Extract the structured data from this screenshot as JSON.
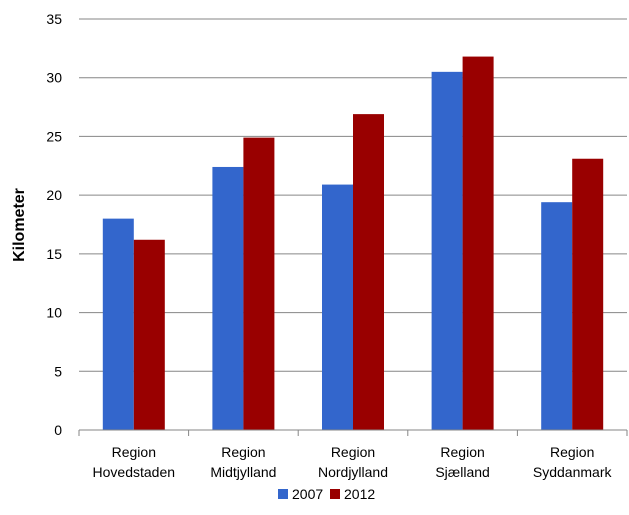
{
  "chart_data": {
    "type": "bar",
    "title": "",
    "xlabel": "",
    "ylabel": "Kilometer",
    "ylim": [
      0,
      35
    ],
    "yticks": [
      0,
      5,
      10,
      15,
      20,
      25,
      30,
      35
    ],
    "grid": true,
    "legend_position": "bottom",
    "categories": [
      [
        "Region",
        "Hovedstaden"
      ],
      [
        "Region",
        "Midtjylland"
      ],
      [
        "Region",
        "Nordjylland"
      ],
      [
        "Region",
        "Sjælland"
      ],
      [
        "Region",
        "Syddanmark"
      ]
    ],
    "series": [
      {
        "name": "2007",
        "color": "#3366CC",
        "values": [
          18.0,
          22.4,
          20.9,
          30.5,
          19.4
        ]
      },
      {
        "name": "2012",
        "color": "#990000",
        "values": [
          16.2,
          24.9,
          26.9,
          31.8,
          23.1
        ]
      }
    ]
  }
}
